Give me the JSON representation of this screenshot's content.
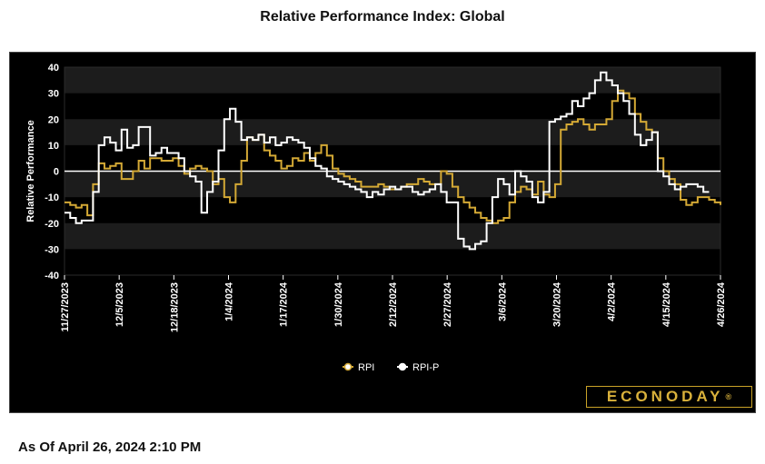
{
  "title": "Relative Performance Index: Global",
  "logo_text": "ECONODAY",
  "asof": "As Of April 26, 2024 2:10 PM",
  "chart_data": {
    "type": "line",
    "title": "Relative Performance Index: Global",
    "ylabel": "Relative Performance",
    "xlabel": "",
    "ylim": [
      -40,
      40
    ],
    "yticks": [
      40,
      30,
      20,
      10,
      0,
      -10,
      -20,
      -30,
      -40
    ],
    "xticks": [
      "11/27/2023",
      "12/5/2023",
      "12/18/2023",
      "1/4/2024",
      "1/17/2024",
      "1/30/2024",
      "2/12/2024",
      "2/27/2024",
      "3/6/2024",
      "3/20/2024",
      "4/2/2024",
      "4/15/2024",
      "4/26/2024"
    ],
    "grid": true,
    "legend": "bottom-center",
    "colors": {
      "RPI": "#d4a935",
      "RPI-P": "#ffffff",
      "background": "#000000",
      "band": "#1c1c1c"
    },
    "series": [
      {
        "name": "RPI",
        "values": [
          -12,
          -13,
          -14,
          -13,
          -17,
          -5,
          3,
          1,
          2,
          3,
          -3,
          -3,
          0,
          4,
          1,
          5,
          5,
          4,
          4,
          5,
          2,
          -1,
          1,
          2,
          1,
          0,
          -5,
          -3,
          -10,
          -12,
          -5,
          4,
          13,
          12,
          14,
          8,
          6,
          4,
          1,
          2,
          5,
          4,
          7,
          4,
          7,
          10,
          6,
          1,
          -1,
          -2,
          -3,
          -4,
          -6,
          -6,
          -6,
          -5,
          -6,
          -7,
          -7,
          -6,
          -5,
          -5,
          -3,
          -4,
          -5,
          -5,
          0,
          -1,
          -6,
          -10,
          -12,
          -14,
          -16,
          -18,
          -19,
          -20,
          -19,
          -18,
          -12,
          -8,
          -6,
          -7,
          -9,
          -4,
          -9,
          -10,
          -5,
          16,
          18,
          19,
          20,
          18,
          16,
          18,
          18,
          20,
          27,
          31,
          30,
          28,
          22,
          19,
          16,
          15,
          5,
          0,
          -3,
          -5,
          -11,
          -13,
          -12,
          -10,
          -10,
          -11,
          -12,
          -13
        ]
      },
      {
        "name": "RPI-P",
        "values": [
          -16,
          -18,
          -20,
          -19,
          -19,
          -8,
          10,
          13,
          11,
          8,
          16,
          9,
          10,
          17,
          17,
          6,
          7,
          9,
          7,
          7,
          5,
          0,
          -2,
          -4,
          -16,
          -8,
          -4,
          8,
          20,
          24,
          19,
          12,
          13,
          12,
          14,
          11,
          13,
          10,
          11,
          13,
          12,
          11,
          9,
          5,
          2,
          1,
          -2,
          -3,
          -4,
          -5,
          -6,
          -7,
          -8,
          -10,
          -8,
          -9,
          -7,
          -6,
          -7,
          -6,
          -6,
          -8,
          -9,
          -8,
          -7,
          -5,
          -8,
          -12,
          -12,
          -26,
          -29,
          -30,
          -28,
          -27,
          -20,
          -10,
          -3,
          -5,
          -9,
          0,
          -2,
          -4,
          -10,
          -12,
          -8,
          19,
          20,
          21,
          22,
          27,
          25,
          28,
          30,
          35,
          38,
          35,
          33,
          30,
          27,
          22,
          14,
          10,
          12,
          15,
          0,
          -2,
          -5,
          -7,
          -6,
          -5,
          -5,
          -6,
          -8,
          -8
        ]
      }
    ]
  }
}
